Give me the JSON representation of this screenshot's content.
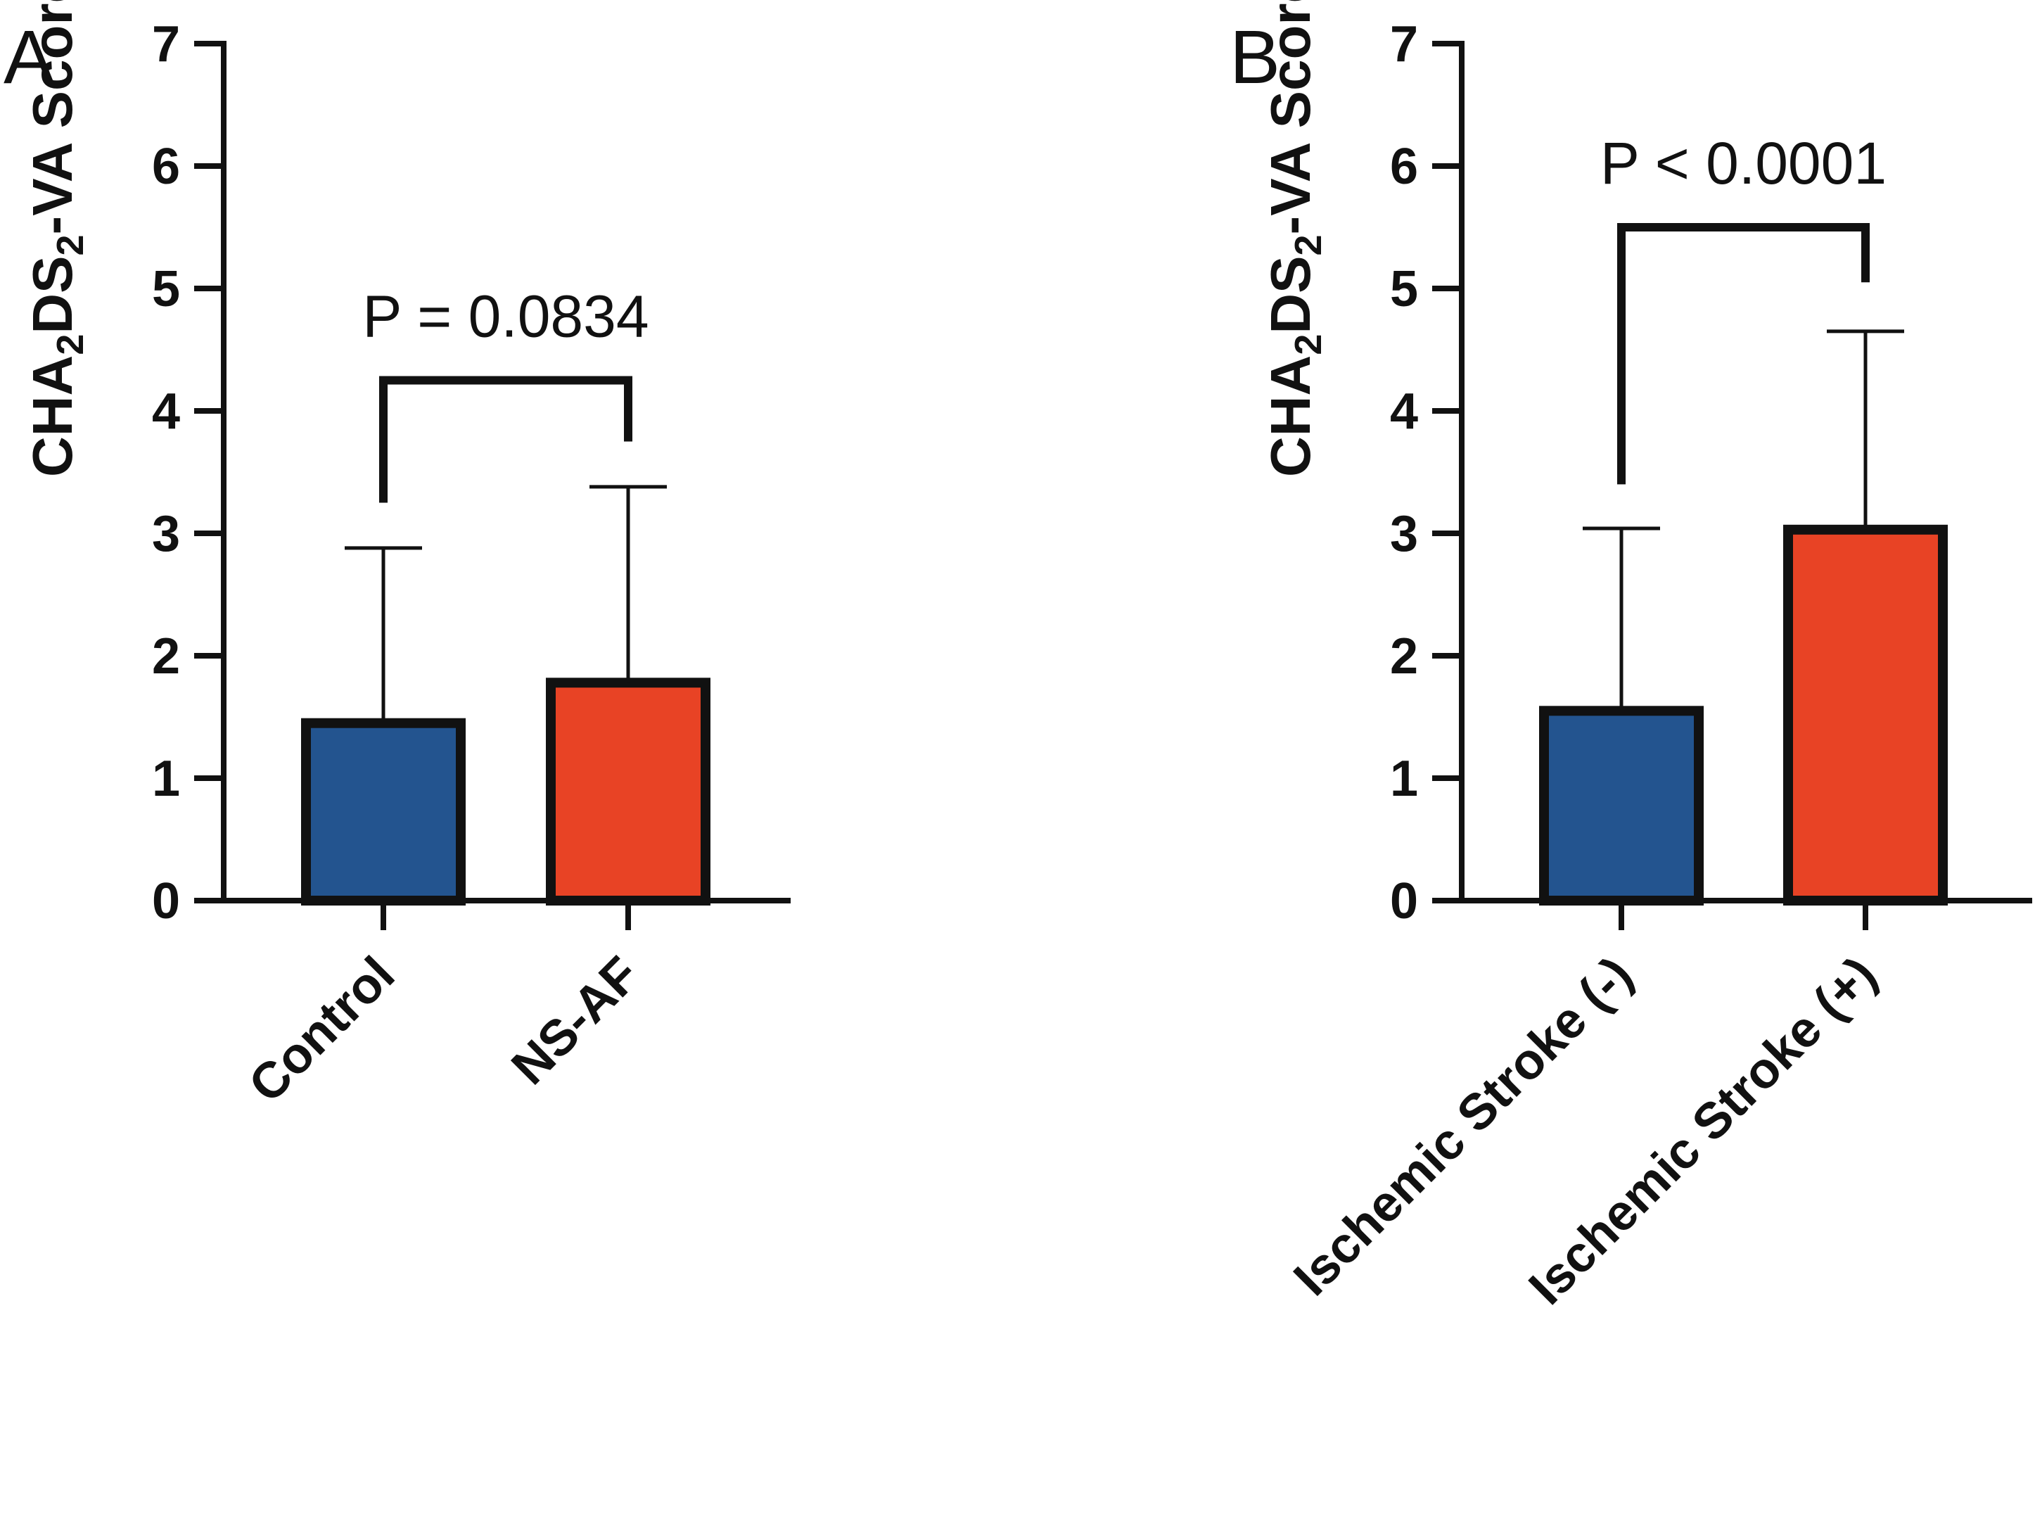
{
  "colors": {
    "blue": "#23548f",
    "red": "#e84325",
    "ink": "#111111"
  },
  "chart_data": [
    {
      "type": "bar",
      "panel_label": "A",
      "categories": [
        "Control",
        "NS-AF"
      ],
      "values": [
        1.45,
        1.78
      ],
      "error_upper": [
        2.88,
        3.38
      ],
      "bar_colors": [
        "#23548f",
        "#e84325"
      ],
      "ylabel_parts": [
        "CHA",
        "2",
        "DS",
        "2",
        "-VA Score"
      ],
      "yticks": [
        "0",
        "1",
        "2",
        "3",
        "4",
        "5",
        "6",
        "7"
      ],
      "ylim": [
        0,
        7
      ],
      "grid": false,
      "annotation": {
        "text": "P = 0.0834",
        "left_start": 3.25,
        "right_start": 3.75,
        "top": 4.25
      }
    },
    {
      "type": "bar",
      "panel_label": "B",
      "categories": [
        "Ischemic Stroke (-)",
        "Ischemic Stroke (+)"
      ],
      "values": [
        1.55,
        3.03
      ],
      "error_upper": [
        3.04,
        4.65
      ],
      "bar_colors": [
        "#23548f",
        "#e84325"
      ],
      "ylabel_parts": [
        "CHA",
        "2",
        "DS",
        "2",
        "-VA Score"
      ],
      "yticks": [
        "0",
        "1",
        "2",
        "3",
        "4",
        "5",
        "6",
        "7"
      ],
      "ylim": [
        0,
        7
      ],
      "grid": false,
      "annotation": {
        "text": "P < 0.0001",
        "left_start": 3.4,
        "right_start": 5.05,
        "top": 5.5
      }
    }
  ]
}
